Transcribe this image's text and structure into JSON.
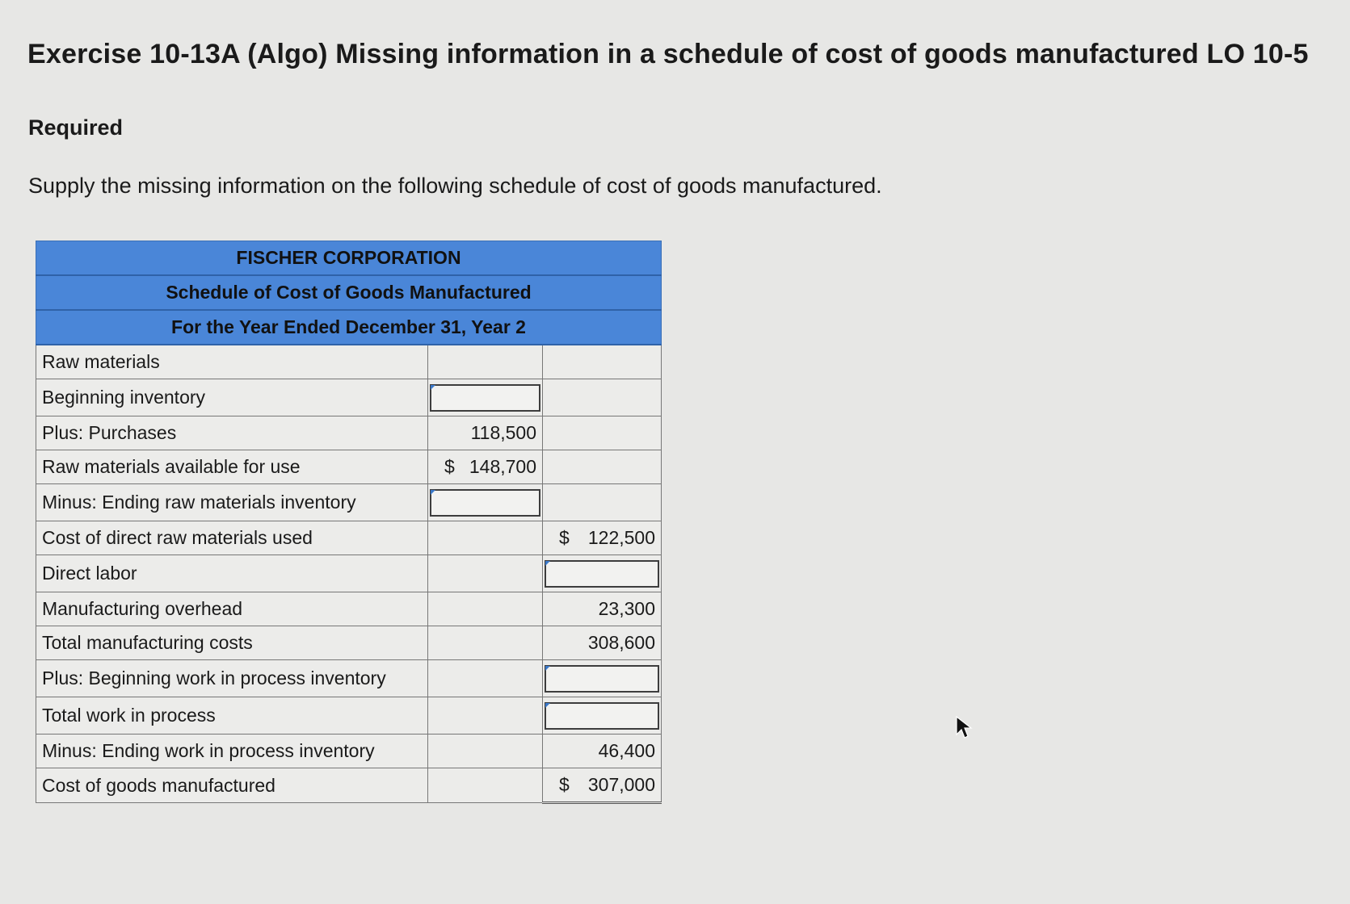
{
  "exercise": {
    "title": "Exercise 10-13A (Algo) Missing information in a schedule of cost of goods manufactured LO 10-5",
    "required_label": "Required",
    "instruction": "Supply the missing information on the following schedule of cost of goods manufactured."
  },
  "schedule": {
    "header": {
      "company": "FISCHER CORPORATION",
      "statement": "Schedule of Cost of Goods Manufactured",
      "period": "For the Year Ended December 31, Year 2"
    },
    "rows": [
      {
        "label": "Raw materials",
        "col2": "",
        "col2_dollar": "",
        "col3": "",
        "col3_dollar": ""
      },
      {
        "label": "Beginning inventory",
        "col2": "",
        "col2_dollar": "",
        "col3": "",
        "col3_dollar": ""
      },
      {
        "label": "Plus: Purchases",
        "col2": "118,500",
        "col2_dollar": "",
        "col3": "",
        "col3_dollar": ""
      },
      {
        "label": "Raw materials available for use",
        "col2": "148,700",
        "col2_dollar": "$",
        "col3": "",
        "col3_dollar": ""
      },
      {
        "label": "Minus: Ending raw materials inventory",
        "col2": "",
        "col2_dollar": "",
        "col3": "",
        "col3_dollar": ""
      },
      {
        "label": "Cost of direct raw materials used",
        "col2": "",
        "col2_dollar": "",
        "col3": "122,500",
        "col3_dollar": "$"
      },
      {
        "label": "Direct labor",
        "col2": "",
        "col2_dollar": "",
        "col3": "",
        "col3_dollar": ""
      },
      {
        "label": "Manufacturing overhead",
        "col2": "",
        "col2_dollar": "",
        "col3": "23,300",
        "col3_dollar": ""
      },
      {
        "label": "Total manufacturing costs",
        "col2": "",
        "col2_dollar": "",
        "col3": "308,600",
        "col3_dollar": ""
      },
      {
        "label": "Plus: Beginning work in process inventory",
        "col2": "",
        "col2_dollar": "",
        "col3": "",
        "col3_dollar": ""
      },
      {
        "label": "Total work in process",
        "col2": "",
        "col2_dollar": "",
        "col3": "",
        "col3_dollar": ""
      },
      {
        "label": "Minus: Ending work in process inventory",
        "col2": "",
        "col2_dollar": "",
        "col3": "46,400",
        "col3_dollar": ""
      },
      {
        "label": "Cost of goods manufactured",
        "col2": "",
        "col2_dollar": "",
        "col3": "307,000",
        "col3_dollar": "$"
      }
    ]
  },
  "colors": {
    "header_background": "#4a86d8",
    "page_background": "#e7e7e5",
    "input_marker": "#3a78c9"
  }
}
